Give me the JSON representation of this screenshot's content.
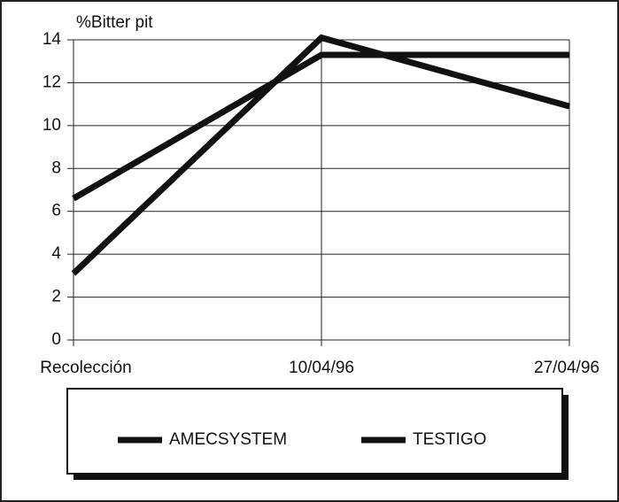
{
  "chart_data": {
    "type": "line",
    "y_label": "%Bitter pit",
    "categories": [
      "Recolección",
      "10/04/96",
      "27/04/96"
    ],
    "series": [
      {
        "name": "AMECSYSTEM",
        "color": "#111111",
        "values": [
          6.6,
          13.3,
          13.3
        ]
      },
      {
        "name": "TESTIGO",
        "color": "#111111",
        "values": [
          3.1,
          14.1,
          10.9
        ]
      }
    ],
    "ylim": [
      0,
      14
    ],
    "yticks": [
      0,
      2,
      4,
      6,
      8,
      10,
      12,
      14
    ],
    "grid": true
  }
}
